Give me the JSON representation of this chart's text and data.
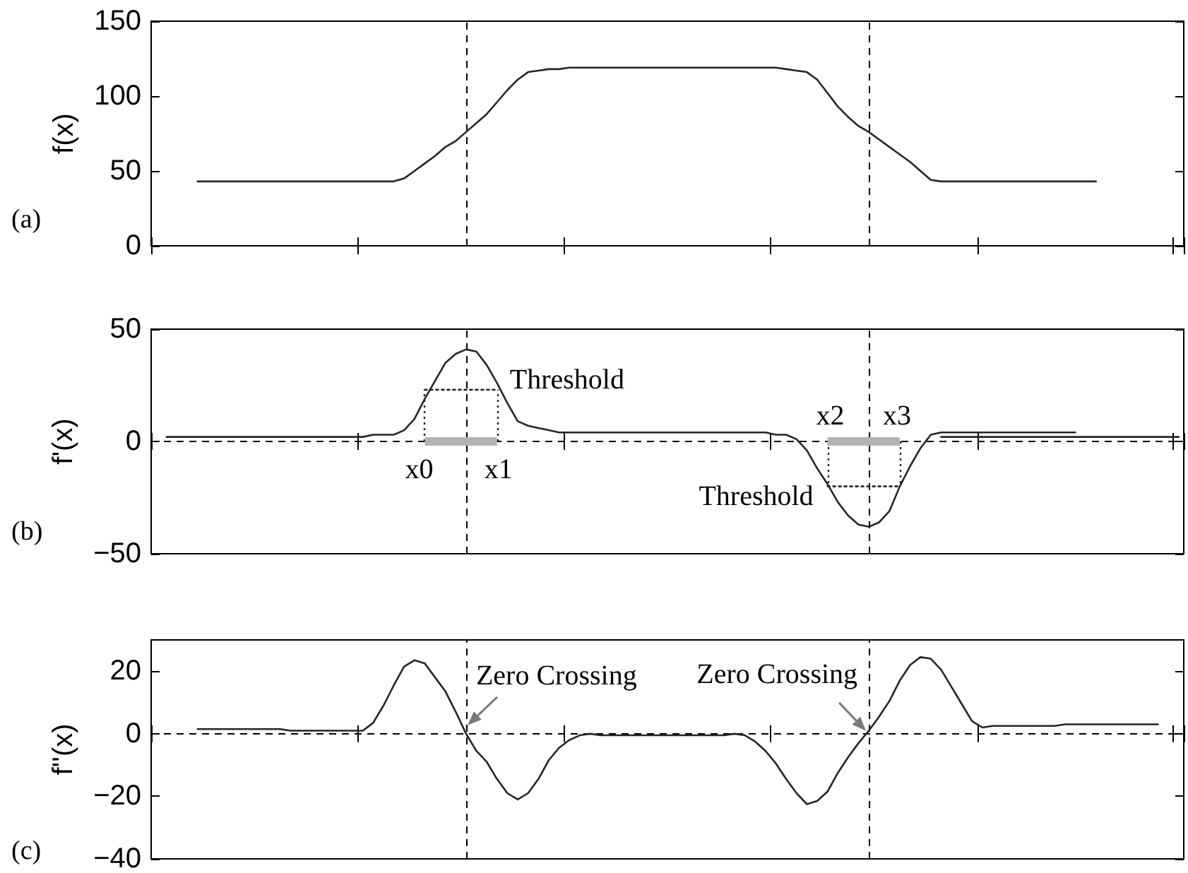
{
  "chart_data": [
    {
      "type": "line",
      "title": "(a)",
      "ylabel": "f(x)",
      "tick_labels": "y",
      "categories": [
        null,
        null,
        null,
        null,
        null,
        null,
        null,
        null,
        null,
        null,
        null,
        null,
        null,
        null,
        null,
        null,
        null,
        null,
        null,
        null,
        null,
        null,
        null,
        null,
        null,
        null,
        null,
        null,
        null,
        null,
        null,
        null,
        null,
        null,
        null,
        null,
        null,
        null,
        null,
        null,
        null,
        null,
        null,
        null,
        null,
        null,
        null,
        null,
        null,
        null,
        null,
        null,
        null,
        null,
        null,
        null,
        null,
        null,
        null,
        null,
        null,
        null,
        null,
        null,
        null,
        null,
        null,
        null,
        null,
        null,
        null,
        null,
        null,
        null,
        null,
        null,
        null,
        null,
        null,
        null,
        null,
        null,
        null,
        null,
        null,
        null,
        null,
        null,
        null,
        null,
        null,
        null,
        null,
        null,
        null,
        null,
        null,
        null,
        null,
        null
      ],
      "series": [
        {
          "color": "#262626",
          "values": [
            null,
            null,
            null,
            null,
            43,
            43,
            43,
            43,
            43,
            43,
            43,
            43,
            43,
            43,
            43,
            43,
            43,
            43,
            43,
            43,
            43,
            43,
            43,
            43,
            45,
            50,
            55,
            60,
            66,
            70,
            76,
            82,
            88,
            96,
            104,
            111,
            116,
            117,
            118,
            118,
            119,
            119,
            119,
            119,
            119,
            119,
            119,
            119,
            119,
            119,
            119,
            119,
            119,
            119,
            119,
            119,
            119,
            119,
            119,
            119,
            119,
            118,
            117,
            116,
            111,
            102,
            93,
            86,
            80,
            76,
            71,
            66,
            61,
            56,
            50,
            44,
            43,
            43,
            43,
            43,
            43,
            43,
            43,
            43,
            43,
            43,
            43,
            43,
            43,
            43,
            43,
            43,
            null,
            null,
            null,
            null,
            null,
            null,
            null,
            null
          ]
        }
      ],
      "ylim": [
        0,
        150
      ],
      "yticks": [
        0,
        50,
        100,
        150
      ]
    },
    {
      "type": "line",
      "title": "(b)",
      "ylabel": "f'(x)",
      "tick_labels": "y",
      "categories": [
        null,
        null,
        null,
        null,
        null,
        null,
        null,
        null,
        null,
        null,
        null,
        null,
        null,
        null,
        null,
        null,
        null,
        null,
        null,
        null,
        null,
        null,
        null,
        null,
        null,
        null,
        null,
        null,
        null,
        null,
        null,
        null,
        null,
        null,
        null,
        null,
        null,
        null,
        null,
        null,
        null,
        null,
        null,
        null,
        null,
        null,
        null,
        null,
        null,
        null,
        null,
        null,
        null,
        null,
        null,
        null,
        null,
        null,
        null,
        null,
        null,
        null,
        null,
        null,
        null,
        null,
        null,
        null,
        null,
        null,
        null,
        null,
        null,
        null,
        null,
        null,
        null,
        null,
        null,
        null,
        null,
        null,
        null,
        null,
        null,
        null,
        null,
        null,
        null,
        null,
        null,
        null,
        null,
        null,
        null,
        null,
        null,
        null,
        null,
        null
      ],
      "series": [
        {
          "color": "#262626",
          "values": [
            null,
            2,
            2,
            2,
            2,
            2,
            2,
            2,
            2,
            2,
            2,
            2,
            2,
            2,
            2,
            2,
            2,
            2,
            2,
            2,
            2,
            3,
            3,
            3,
            5,
            10,
            19,
            27,
            35,
            39,
            41,
            40,
            34,
            26,
            17,
            9,
            7,
            6,
            5,
            4,
            4,
            4,
            4,
            4,
            4,
            4,
            4,
            4,
            4,
            4,
            4,
            4,
            4,
            4,
            4,
            4,
            4,
            4,
            4,
            4,
            3,
            3,
            1,
            -4,
            -12,
            -19,
            -27,
            -33,
            -37,
            -38,
            -36,
            -31,
            -20,
            -11,
            -3,
            3,
            4,
            4,
            4,
            4,
            4,
            4,
            4,
            4,
            4,
            4,
            4,
            4,
            4,
            4,
            null,
            null,
            null,
            null,
            null,
            null,
            null,
            null,
            null,
            null
          ]
        },
        {
          "color": "#262626",
          "values": [
            null,
            null,
            null,
            null,
            null,
            null,
            null,
            null,
            null,
            null,
            null,
            null,
            null,
            null,
            null,
            null,
            null,
            null,
            null,
            null,
            null,
            null,
            null,
            null,
            null,
            null,
            null,
            null,
            null,
            null,
            null,
            null,
            null,
            null,
            null,
            null,
            null,
            null,
            null,
            null,
            null,
            null,
            null,
            null,
            null,
            null,
            null,
            null,
            null,
            null,
            null,
            null,
            null,
            null,
            null,
            null,
            null,
            null,
            null,
            null,
            null,
            null,
            null,
            null,
            null,
            null,
            null,
            null,
            null,
            null,
            null,
            null,
            null,
            null,
            null,
            null,
            2,
            2,
            2,
            2,
            2,
            2,
            2,
            2,
            2,
            2,
            2,
            2,
            2,
            2,
            2,
            2,
            2,
            2,
            2,
            2,
            2,
            2,
            2,
            2
          ]
        },
        {
          "name": "Threshold",
          "color": "#262626",
          "line_style": "dotted",
          "values": [
            null,
            null,
            null,
            null,
            null,
            null,
            null,
            null,
            null,
            null,
            null,
            null,
            null,
            null,
            null,
            null,
            null,
            null,
            null,
            null,
            null,
            null,
            null,
            null,
            null,
            null,
            23,
            23,
            23,
            23,
            23,
            23,
            23,
            23,
            null,
            null,
            null,
            null,
            null,
            null,
            null,
            null,
            null,
            null,
            null,
            null,
            null,
            null,
            null,
            null,
            null,
            null,
            null,
            null,
            null,
            null,
            null,
            null,
            null,
            null,
            null,
            null,
            null,
            null,
            null,
            null,
            null,
            null,
            null,
            null,
            null,
            null,
            null,
            null,
            null,
            null,
            null,
            null,
            null,
            null,
            null,
            null,
            null,
            null,
            null,
            null,
            null,
            null,
            null,
            null,
            null,
            null,
            null,
            null,
            null,
            null,
            null,
            null,
            null,
            null
          ]
        },
        {
          "name": "Threshold",
          "color": "#262626",
          "line_style": "dotted",
          "values": [
            null,
            null,
            null,
            null,
            null,
            null,
            null,
            null,
            null,
            null,
            null,
            null,
            null,
            null,
            null,
            null,
            null,
            null,
            null,
            null,
            null,
            null,
            null,
            null,
            null,
            null,
            null,
            null,
            null,
            null,
            null,
            null,
            null,
            null,
            null,
            null,
            null,
            null,
            null,
            null,
            null,
            null,
            null,
            null,
            null,
            null,
            null,
            null,
            null,
            null,
            null,
            null,
            null,
            null,
            null,
            null,
            null,
            null,
            null,
            null,
            null,
            null,
            null,
            null,
            null,
            -20,
            -20,
            -20,
            -20,
            -20,
            -20,
            -20,
            -20,
            null,
            null,
            null,
            null,
            null,
            null,
            null,
            null,
            null,
            null,
            null,
            null,
            null,
            null,
            null,
            null,
            null,
            null,
            null,
            null,
            null,
            null,
            null,
            null,
            null,
            null,
            null
          ]
        },
        {
          "color": "#b3b3b3",
          "values": [
            null,
            null,
            null,
            null,
            null,
            null,
            null,
            null,
            null,
            null,
            null,
            null,
            null,
            null,
            null,
            null,
            null,
            null,
            null,
            null,
            null,
            null,
            null,
            null,
            null,
            null,
            0,
            0,
            0,
            0,
            0,
            0,
            0,
            0,
            null,
            null,
            null,
            null,
            null,
            null,
            null,
            null,
            null,
            null,
            null,
            null,
            null,
            null,
            null,
            null,
            null,
            null,
            null,
            null,
            null,
            null,
            null,
            null,
            null,
            null,
            null,
            null,
            null,
            null,
            null,
            null,
            null,
            null,
            null,
            null,
            null,
            null,
            null,
            null,
            null,
            null,
            null,
            null,
            null,
            null,
            null,
            null,
            null,
            null,
            null,
            null,
            null,
            null,
            null,
            null,
            null,
            null,
            null,
            null,
            null,
            null,
            null,
            null,
            null,
            null
          ]
        },
        {
          "color": "#b3b3b3",
          "values": [
            null,
            null,
            null,
            null,
            null,
            null,
            null,
            null,
            null,
            null,
            null,
            null,
            null,
            null,
            null,
            null,
            null,
            null,
            null,
            null,
            null,
            null,
            null,
            null,
            null,
            null,
            null,
            null,
            null,
            null,
            null,
            null,
            null,
            null,
            null,
            null,
            null,
            null,
            null,
            null,
            null,
            null,
            null,
            null,
            null,
            null,
            null,
            null,
            null,
            null,
            null,
            null,
            null,
            null,
            null,
            null,
            null,
            null,
            null,
            null,
            null,
            null,
            null,
            null,
            null,
            0,
            0,
            0,
            0,
            0,
            0,
            0,
            0,
            null,
            null,
            null,
            null,
            null,
            null,
            null,
            null,
            null,
            null,
            null,
            null,
            null,
            null,
            null,
            null,
            null,
            null,
            null,
            null,
            null,
            null,
            null,
            null,
            null,
            null,
            null
          ]
        }
      ],
      "ylim": [
        -50,
        50
      ],
      "yticks": [
        {
          "value": -50,
          "label": "−50"
        },
        0,
        50
      ],
      "ref_lines": [
        {
          "axis": "y",
          "value": 0,
          "line_style": "dashed"
        }
      ],
      "annotations": [
        {
          "text": "x0",
          "y": 0
        },
        {
          "text": "x1",
          "y": 0
        },
        {
          "text": "x2",
          "y": 0
        },
        {
          "text": "x3",
          "y": 0
        }
      ]
    },
    {
      "type": "line",
      "title": "(c)",
      "ylabel": "f''(x)",
      "tick_labels": "y",
      "categories": [
        null,
        null,
        null,
        null,
        null,
        null,
        null,
        null,
        null,
        null,
        null,
        null,
        null,
        null,
        null,
        null,
        null,
        null,
        null,
        null,
        null,
        null,
        null,
        null,
        null,
        null,
        null,
        null,
        null,
        null,
        null,
        null,
        null,
        null,
        null,
        null,
        null,
        null,
        null,
        null,
        null,
        null,
        null,
        null,
        null,
        null,
        null,
        null,
        null,
        null,
        null,
        null,
        null,
        null,
        null,
        null,
        null,
        null,
        null,
        null,
        null,
        null,
        null,
        null,
        null,
        null,
        null,
        null,
        null,
        null,
        null,
        null,
        null,
        null,
        null,
        null,
        null,
        null,
        null,
        null,
        null,
        null,
        null,
        null,
        null,
        null,
        null,
        null,
        null,
        null,
        null,
        null,
        null,
        null,
        null,
        null,
        null,
        null,
        null,
        null
      ],
      "series": [
        {
          "color": "#262626",
          "values": [
            null,
            null,
            null,
            null,
            1.5,
            1.5,
            1.5,
            1.5,
            1.5,
            1.5,
            1.5,
            1.5,
            1.5,
            1,
            1,
            1,
            1,
            1,
            1,
            1,
            1,
            3.5,
            9,
            15.5,
            21.5,
            23.5,
            22.5,
            18,
            13.5,
            7,
            0,
            -5.5,
            -9,
            -14.5,
            -19,
            -21,
            -19,
            -14.5,
            -8.5,
            -4.5,
            -2,
            -0.5,
            0,
            -0.5,
            -0.5,
            -0.5,
            -0.5,
            -0.5,
            -0.5,
            -0.5,
            -0.5,
            -0.5,
            -0.5,
            -0.5,
            -0.5,
            -0.5,
            0,
            -0.5,
            -2.5,
            -5.5,
            -9.5,
            -14.5,
            -19,
            -22.5,
            -21.5,
            -18.5,
            -12.5,
            -7.5,
            -3,
            1,
            5.5,
            10.5,
            17,
            22,
            24.5,
            24,
            20.5,
            15,
            9.5,
            4,
            2,
            2.5,
            2.5,
            2.5,
            2.5,
            2.5,
            2.5,
            2.5,
            3,
            3,
            3,
            3,
            3,
            3,
            3,
            3,
            3,
            3,
            null,
            null
          ]
        }
      ],
      "ylim": [
        -40,
        30
      ],
      "yticks": [
        {
          "value": -40,
          "label": "−40"
        },
        {
          "value": -20,
          "label": "−20"
        },
        0,
        20
      ],
      "ref_lines": [
        {
          "axis": "y",
          "value": 0,
          "line_style": "dashed"
        }
      ],
      "annotations": [
        {
          "text": "Zero Crossing",
          "y": 0
        },
        {
          "text": "Zero Crossing",
          "y": 0
        }
      ]
    }
  ]
}
